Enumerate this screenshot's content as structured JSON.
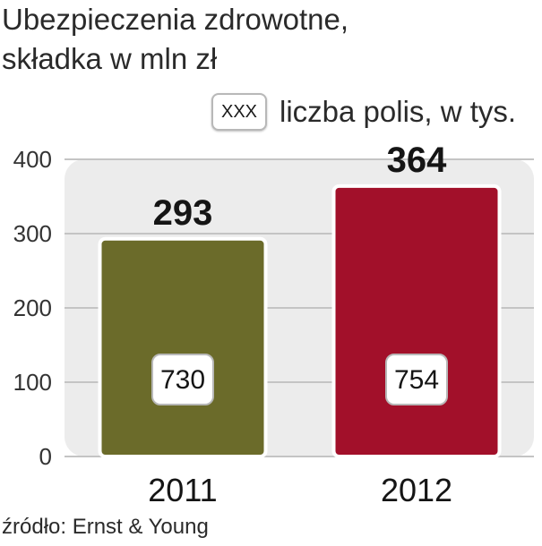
{
  "title_lines": [
    "Ubezpieczenia zdrowotne,",
    "składka w mln zł"
  ],
  "legend": {
    "box_label": "XXX",
    "label": "liczba polis, w tys."
  },
  "chart_data": {
    "type": "bar",
    "categories": [
      "2011",
      "2012"
    ],
    "series": [
      {
        "values": [
          293,
          364
        ]
      }
    ],
    "inner_labels": [
      730,
      754
    ],
    "bar_colors": [
      "#6b6b2a",
      "#a2102a"
    ],
    "ylim": [
      0,
      400
    ],
    "yticks": [
      0,
      100,
      200,
      300,
      400
    ],
    "grid": true
  },
  "source": "źródło: Ernst & Young"
}
